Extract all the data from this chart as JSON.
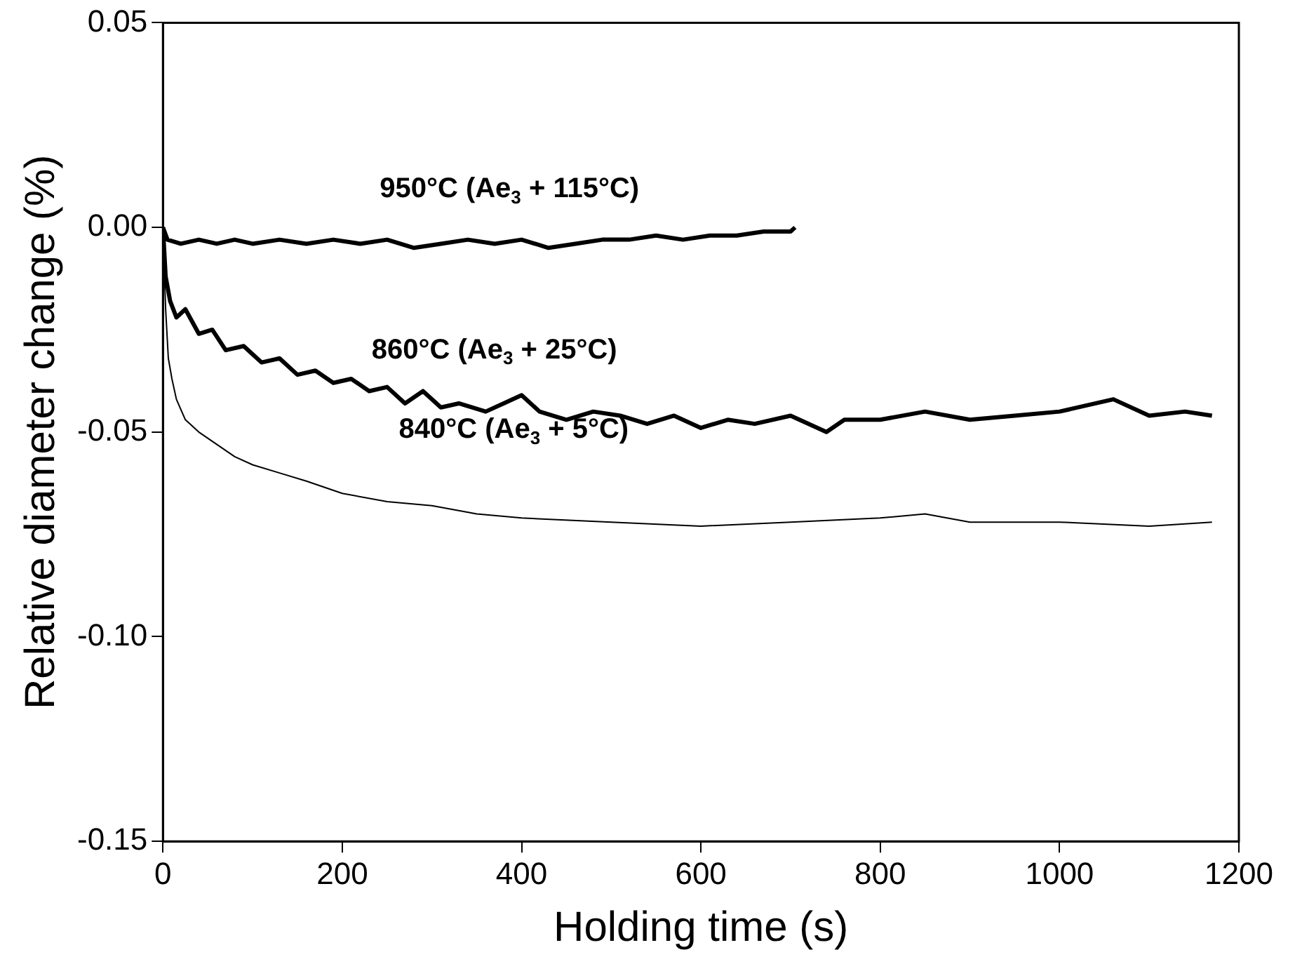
{
  "chart_data": {
    "type": "line",
    "xlabel": "Holding time (s)",
    "ylabel": "Relative diameter change (%)",
    "xlim": [
      0,
      1200
    ],
    "xticks": [
      0,
      200,
      400,
      600,
      800,
      1000,
      1200
    ],
    "ylim": [
      -0.15,
      0.05
    ],
    "yticks": [
      {
        "value": -0.15,
        "label": "-0.15"
      },
      {
        "value": -0.1,
        "label": "-0.10"
      },
      {
        "value": -0.05,
        "label": "-0.05"
      },
      {
        "value": 0,
        "label": "0.00"
      },
      {
        "value": 0.05,
        "label": "0.05"
      }
    ],
    "grid": false,
    "legend": false,
    "marker": "none",
    "line_style": "solid",
    "annotations": [
      "950°C (Ae$_{3}$ + 115°C)",
      "860°C (Ae$_{3}$ + 25°C)",
      "840°C (Ae$_{3}$ + 5°C)"
    ],
    "series": [
      {
        "color": "#000000",
        "x": [
          0,
          5,
          20,
          40,
          60,
          80,
          100,
          130,
          160,
          190,
          220,
          250,
          280,
          310,
          340,
          370,
          400,
          430,
          460,
          490,
          520,
          550,
          580,
          610,
          640,
          670,
          700,
          705
        ],
        "values": [
          0,
          -0.003,
          -0.004,
          -0.003,
          -0.004,
          -0.003,
          -0.004,
          -0.003,
          -0.004,
          -0.003,
          -0.004,
          -0.003,
          -0.005,
          -0.004,
          -0.003,
          -0.004,
          -0.003,
          -0.005,
          -0.004,
          -0.003,
          -0.003,
          -0.002,
          -0.003,
          -0.002,
          -0.002,
          -0.001,
          -0.001,
          0
        ]
      },
      {
        "color": "#000000",
        "x": [
          0,
          3,
          8,
          15,
          25,
          40,
          55,
          70,
          90,
          110,
          130,
          150,
          170,
          190,
          210,
          230,
          250,
          270,
          290,
          310,
          330,
          360,
          380,
          400,
          420,
          450,
          480,
          510,
          540,
          570,
          600,
          630,
          660,
          700,
          740,
          760,
          800,
          850,
          900,
          950,
          1000,
          1060,
          1100,
          1140,
          1170
        ],
        "values": [
          0,
          -0.012,
          -0.018,
          -0.022,
          -0.02,
          -0.026,
          -0.025,
          -0.03,
          -0.029,
          -0.033,
          -0.032,
          -0.036,
          -0.035,
          -0.038,
          -0.037,
          -0.04,
          -0.039,
          -0.043,
          -0.04,
          -0.044,
          -0.043,
          -0.045,
          -0.043,
          -0.041,
          -0.045,
          -0.047,
          -0.045,
          -0.046,
          -0.048,
          -0.046,
          -0.049,
          -0.047,
          -0.048,
          -0.046,
          -0.05,
          -0.047,
          -0.047,
          -0.045,
          -0.047,
          -0.046,
          -0.045,
          -0.042,
          -0.046,
          -0.045,
          -0.046
        ]
      },
      {
        "color": "#000000",
        "x": [
          0,
          3,
          6,
          10,
          15,
          25,
          40,
          60,
          80,
          100,
          130,
          160,
          200,
          250,
          300,
          350,
          400,
          500,
          600,
          700,
          800,
          850,
          900,
          1000,
          1100,
          1170
        ],
        "values": [
          0,
          -0.02,
          -0.032,
          -0.037,
          -0.042,
          -0.047,
          -0.05,
          -0.053,
          -0.056,
          -0.058,
          -0.06,
          -0.062,
          -0.065,
          -0.067,
          -0.068,
          -0.07,
          -0.071,
          -0.072,
          -0.073,
          -0.072,
          -0.071,
          -0.07,
          -0.072,
          -0.072,
          -0.073,
          -0.072
        ]
      }
    ]
  }
}
